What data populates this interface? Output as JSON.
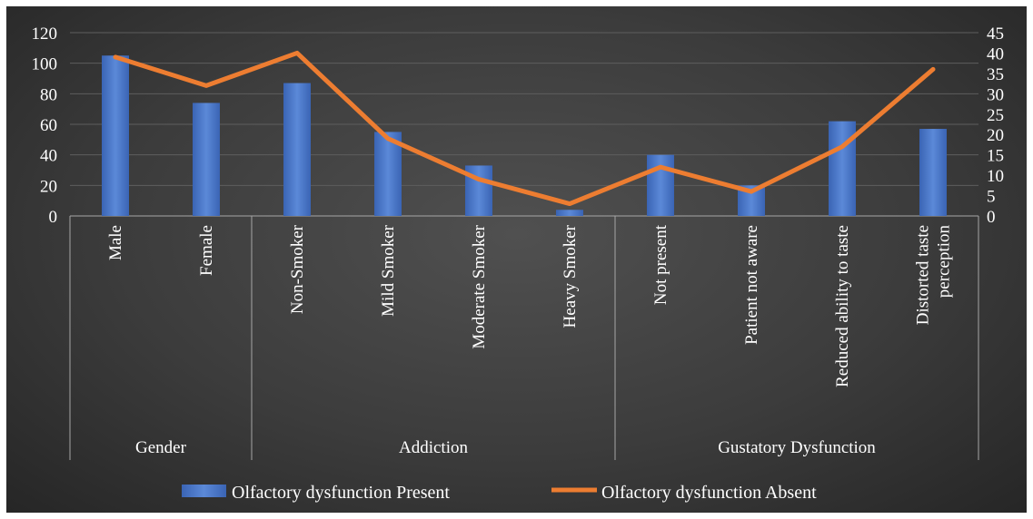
{
  "chart_data": {
    "type": "bar",
    "categories": [
      "Male",
      "Female",
      "Non-Smoker",
      "Mild Smoker",
      "Moderate Smoker",
      "Heavy Smoker",
      "Not present",
      "Patient not aware",
      "Reduced ability to taste",
      "Distorted taste perception"
    ],
    "category_lines": [
      [
        "Male"
      ],
      [
        "Female"
      ],
      [
        "Non-Smoker"
      ],
      [
        "Mild Smoker"
      ],
      [
        "Moderate Smoker"
      ],
      [
        "Heavy Smoker"
      ],
      [
        "Not present"
      ],
      [
        "Patient not aware"
      ],
      [
        "Reduced ability to taste"
      ],
      [
        "Distorted taste",
        "perception"
      ]
    ],
    "groups": [
      {
        "label": "Gender",
        "start": 0,
        "count": 2
      },
      {
        "label": "Addiction",
        "start": 2,
        "count": 4
      },
      {
        "label": "Gustatory Dysfunction",
        "start": 6,
        "count": 4
      }
    ],
    "series": [
      {
        "name": "Olfactory dysfunction Present",
        "type": "bar",
        "axis": "left",
        "color": "#4472C4",
        "values": [
          105,
          74,
          87,
          55,
          33,
          4,
          40,
          20,
          62,
          57
        ]
      },
      {
        "name": "Olfactory dysfunction Absent",
        "type": "line",
        "axis": "right",
        "color": "#ED7D31",
        "values": [
          39,
          32,
          40,
          19,
          9,
          3,
          12,
          6,
          17,
          36
        ]
      }
    ],
    "y_left": {
      "min": 0,
      "max": 120,
      "step": 20,
      "ticks": [
        "0",
        "20",
        "40",
        "60",
        "80",
        "100",
        "120"
      ]
    },
    "y_right": {
      "min": 0,
      "max": 45,
      "step": 5,
      "ticks": [
        "0",
        "5",
        "10",
        "15",
        "20",
        "25",
        "30",
        "35",
        "40",
        "45"
      ]
    },
    "grid": true,
    "legend_position": "bottom"
  }
}
